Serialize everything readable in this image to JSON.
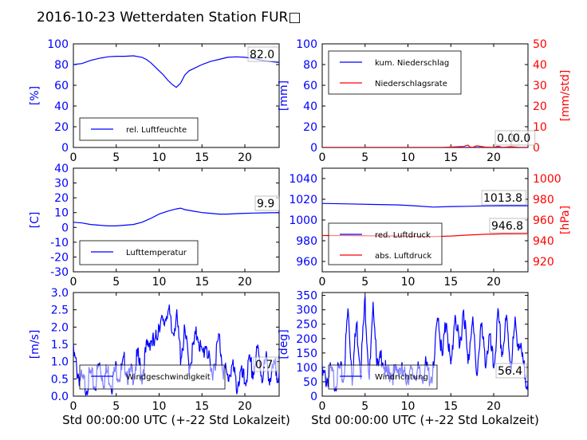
{
  "title": "2016-10-23 Wetterdaten Station FUR□",
  "xlabel": "Std 00:00:00 UTC (+-22 Std Lokalzeit)",
  "colors": {
    "blue": "#0000ff",
    "red": "#ff0000",
    "lightblue": "#8080ff"
  },
  "chart_data": [
    {
      "type": "line",
      "xlim": [
        0,
        24
      ],
      "ylim": [
        0,
        100
      ],
      "yticks": [
        0,
        20,
        40,
        60,
        80,
        100
      ],
      "ylabel": "[%]",
      "xticks": [
        0,
        5,
        10,
        15,
        20
      ],
      "legend": [
        "rel. Luftfeuchte"
      ],
      "last_value": "82.0",
      "series": [
        {
          "name": "rel. Luftfeuchte",
          "color": "#0000ff",
          "x": [
            0,
            1,
            2,
            3,
            4,
            5,
            6,
            7,
            8,
            8.5,
            9,
            9.5,
            10,
            10.5,
            11,
            11.5,
            12,
            12.5,
            13,
            13.5,
            14,
            15,
            16,
            17,
            18,
            19,
            20,
            21,
            22,
            23,
            24
          ],
          "y": [
            80,
            81,
            84,
            86,
            87.5,
            88,
            88,
            88.5,
            87,
            85,
            82,
            78,
            74,
            70,
            65,
            61,
            58,
            62,
            70,
            74,
            76,
            80,
            83,
            85,
            87,
            87.5,
            87,
            86,
            84,
            83,
            82
          ]
        }
      ]
    },
    {
      "type": "line",
      "xlim": [
        0,
        24
      ],
      "ylim": [
        0,
        100
      ],
      "yticks": [
        0,
        20,
        40,
        60,
        80,
        100
      ],
      "ylabel": "[mm]",
      "ylim2": [
        0,
        50
      ],
      "yticks2": [
        0,
        10,
        20,
        30,
        40,
        50
      ],
      "ylabel2": "[mm/std]",
      "xticks": [
        0,
        5,
        10,
        15,
        20
      ],
      "legend": [
        "kum. Niederschlag",
        "Niederschlagsrate"
      ],
      "last_value": "0.0",
      "last_value2": "0.0",
      "series": [
        {
          "name": "kum. Niederschlag",
          "color": "#0000ff",
          "x": [
            0,
            24
          ],
          "y": [
            0,
            0
          ]
        },
        {
          "name": "Niederschlagsrate",
          "color": "#ff0000",
          "axis": "right",
          "x": [
            0,
            14,
            16.5,
            17,
            17.2,
            17.5,
            18,
            19,
            20,
            20.5,
            21,
            22,
            23,
            24
          ],
          "y": [
            0,
            0,
            0.5,
            1.2,
            0.3,
            0,
            0.8,
            0.2,
            0,
            0.6,
            0,
            0.4,
            0,
            0
          ]
        }
      ]
    },
    {
      "type": "line",
      "xlim": [
        0,
        24
      ],
      "ylim": [
        -30,
        40
      ],
      "yticks": [
        -30,
        -20,
        -10,
        0,
        10,
        20,
        30,
        40
      ],
      "ylabel": "[C]",
      "xticks": [
        0,
        5,
        10,
        15,
        20
      ],
      "legend": [
        "Lufttemperatur"
      ],
      "last_value": "9.9",
      "series": [
        {
          "name": "Lufttemperatur",
          "color": "#0000ff",
          "x": [
            0,
            1,
            2,
            3,
            4,
            5,
            6,
            7,
            8,
            9,
            10,
            11,
            12,
            12.5,
            13,
            14,
            15,
            16,
            17,
            18,
            19,
            20,
            21,
            22,
            23,
            24
          ],
          "y": [
            3.5,
            3,
            2,
            1.5,
            1,
            1,
            1.5,
            2,
            3.5,
            6,
            9,
            11,
            12.5,
            13,
            12,
            11,
            10,
            9.5,
            9,
            9,
            9.3,
            9.5,
            9.7,
            9.8,
            9.9,
            9.9
          ]
        }
      ]
    },
    {
      "type": "line",
      "xlim": [
        0,
        24
      ],
      "ylim": [
        950,
        1050
      ],
      "yticks": [
        960,
        980,
        1000,
        1020,
        1040
      ],
      "ylabel": "",
      "ylim2": [
        910,
        1010
      ],
      "yticks2": [
        920,
        940,
        960,
        980,
        1000
      ],
      "ylabel2": "[hPa]",
      "xticks": [
        0,
        5,
        10,
        15,
        20
      ],
      "legend": [
        "red. Luftdruck",
        "abs. Luftdruck"
      ],
      "last_value": "1013.8",
      "last_value2": "946.8",
      "series": [
        {
          "name": "red. Luftdruck",
          "color": "#0000ff",
          "x": [
            0,
            3,
            6,
            9,
            11,
            13,
            15,
            17,
            19,
            21,
            24
          ],
          "y": [
            1016,
            1015.5,
            1015,
            1014.5,
            1013.5,
            1012.5,
            1013,
            1013.2,
            1013.6,
            1013.8,
            1013.8
          ]
        },
        {
          "name": "abs. Luftdruck",
          "color": "#ff0000",
          "axis": "right",
          "x": [
            0,
            3,
            6,
            9,
            11,
            13,
            15,
            17,
            19,
            21,
            24
          ],
          "y": [
            945,
            945,
            944.7,
            944.5,
            944.2,
            944,
            944.5,
            945.5,
            946.2,
            946.6,
            946.8
          ]
        }
      ]
    },
    {
      "type": "line",
      "xlim": [
        0,
        24
      ],
      "ylim": [
        0,
        3.0
      ],
      "yticks": [
        0.0,
        0.5,
        1.0,
        1.5,
        2.0,
        2.5,
        3.0
      ],
      "ylabel": "[m/s]",
      "xticks": [
        0,
        5,
        10,
        15,
        20
      ],
      "legend": [
        "Windgeschwindigkeit"
      ],
      "last_value": "0.7",
      "series": [
        {
          "name": "Windgeschwindigkeit",
          "color": "#0000ff",
          "smoothing": "jagged",
          "x": [
            0,
            0.5,
            1,
            1.5,
            2,
            2.5,
            3,
            3.5,
            4,
            4.5,
            5,
            5.5,
            6,
            6.5,
            7,
            7.5,
            8,
            8.5,
            9,
            9.5,
            10,
            10.5,
            11,
            11.5,
            12,
            12.5,
            13,
            13.5,
            14,
            14.5,
            15,
            15.5,
            16,
            16.5,
            17,
            17.5,
            18,
            18.5,
            19,
            19.5,
            20,
            20.5,
            21,
            21.5,
            22,
            22.5,
            23,
            23.5,
            24
          ],
          "y": [
            1.2,
            0.7,
            0.4,
            0.3,
            0.6,
            0.3,
            0.9,
            0.5,
            0.7,
            0.4,
            0.8,
            0.6,
            1.0,
            0.5,
            0.7,
            1.1,
            0.6,
            1.3,
            1.7,
            1.4,
            2.2,
            2.0,
            2.6,
            1.8,
            2.3,
            1.2,
            1.8,
            0.9,
            1.4,
            1.9,
            1.1,
            1.6,
            0.6,
            1.0,
            1.7,
            0.8,
            0.5,
            0.9,
            0.3,
            0.6,
            0.4,
            0.9,
            0.7,
            1.3,
            0.6,
            1.0,
            0.5,
            0.8,
            0.7
          ]
        }
      ]
    },
    {
      "type": "line",
      "xlim": [
        0,
        24
      ],
      "ylim": [
        0,
        360
      ],
      "yticks": [
        0,
        50,
        100,
        150,
        200,
        250,
        300,
        350
      ],
      "ylabel": "[deg]",
      "xticks": [
        0,
        5,
        10,
        15,
        20
      ],
      "legend": [
        "Windrichtung"
      ],
      "last_value": "56.4",
      "series": [
        {
          "name": "Windrichtung",
          "color": "#0000ff",
          "smoothing": "jagged",
          "x": [
            0,
            0.5,
            1,
            1.5,
            2,
            2.5,
            3,
            3.5,
            4,
            4.5,
            5,
            5.5,
            6,
            6.5,
            7,
            7.5,
            8,
            8.5,
            9,
            9.5,
            10,
            10.5,
            11,
            11.5,
            12,
            12.5,
            13,
            13.5,
            14,
            14.5,
            15,
            15.5,
            16,
            16.5,
            17,
            17.5,
            18,
            18.5,
            19,
            19.5,
            20,
            20.5,
            21,
            21.5,
            22,
            22.5,
            23,
            23.5,
            24
          ],
          "y": [
            70,
            60,
            80,
            50,
            90,
            60,
            300,
            70,
            250,
            100,
            330,
            60,
            320,
            80,
            150,
            60,
            90,
            70,
            110,
            60,
            80,
            70,
            90,
            60,
            100,
            70,
            80,
            300,
            120,
            280,
            80,
            300,
            150,
            320,
            100,
            290,
            60,
            250,
            120,
            200,
            100,
            270,
            150,
            260,
            110,
            240,
            180,
            90,
            56
          ]
        }
      ]
    }
  ]
}
